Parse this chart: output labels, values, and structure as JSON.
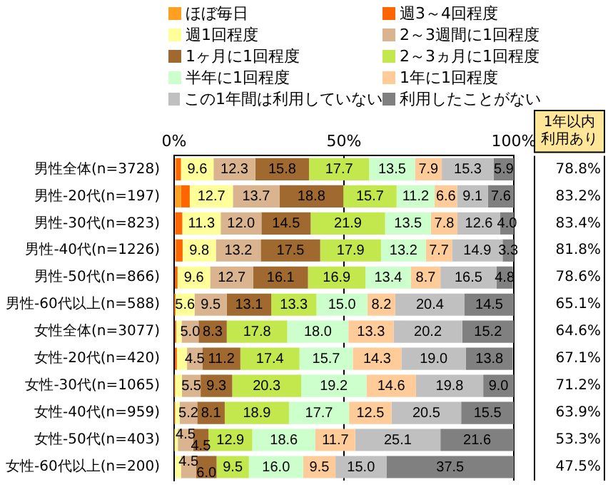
{
  "chart_data": {
    "type": "bar",
    "orientation": "horizontal",
    "stacked": true,
    "legend": "top",
    "grid": "x",
    "categories": [
      "男性全体(n=3728)",
      "男性-20代(n=197)",
      "男性-30代(n=823)",
      "男性-40代(n=1226)",
      "男性-50代(n=866)",
      "男性-60代以上(n=588)",
      "女性全体(n=3077)",
      "女性-20代(n=420)",
      "女性-30代(n=1065)",
      "女性-40代(n=959)",
      "女性-50代(n=403)",
      "女性-60代以上(n=200)"
    ],
    "xlim": [
      0,
      100
    ],
    "xticks": [
      {
        "value": 0,
        "label": "0%"
      },
      {
        "value": 50,
        "label": "50%"
      },
      {
        "value": 100,
        "label": "100%"
      }
    ],
    "series": [
      {
        "name": "ほぼ毎日",
        "color": "#ffa020",
        "values": [
          0.5,
          2.0,
          0.4,
          0.5,
          null,
          0.1,
          0.2,
          null,
          0.1,
          0.1,
          0,
          0
        ]
      },
      {
        "name": "週3～4回程度",
        "color": "#ff6600",
        "values": [
          1.5,
          2.6,
          2.0,
          2.0,
          1.0,
          0.3,
          0.4,
          0.8,
          0.2,
          0.2,
          0.1,
          0
        ]
      },
      {
        "name": "週1回程度",
        "color": "#ffff99",
        "values": [
          9.6,
          12.7,
          11.3,
          9.8,
          9.6,
          5.6,
          1.6,
          3.0,
          2.0,
          1.3,
          1.0,
          2.0
        ],
        "value_labels": [
          "9.6",
          "12.7",
          "11.3",
          "9.8",
          "9.6",
          "5.6",
          null,
          null,
          null,
          null,
          null,
          null
        ]
      },
      {
        "name": "2～3週間に1回程度",
        "color": "#dab48e",
        "values": [
          12.3,
          13.7,
          12.0,
          13.2,
          12.7,
          9.5,
          5.0,
          4.5,
          5.5,
          5.2,
          4.5,
          4.5
        ],
        "value_labels": [
          "12.3",
          "13.7",
          "12.0",
          "13.2",
          "12.7",
          "9.5",
          "5.0",
          "4.5",
          "5.5",
          "5.2",
          "4.5",
          "4.5"
        ]
      },
      {
        "name": "1ヶ月に1回程度",
        "color": "#a0692f",
        "values": [
          15.8,
          18.8,
          14.5,
          17.5,
          16.1,
          13.1,
          8.3,
          11.2,
          9.3,
          8.1,
          4.5,
          6.0
        ],
        "value_labels": [
          "15.8",
          "18.8",
          "14.5",
          "17.5",
          "16.1",
          "13.1",
          "8.3",
          "11.2",
          "9.3",
          "8.1",
          "4.5",
          "6.0"
        ]
      },
      {
        "name": "2～3ヵ月に1回程度",
        "color": "#c2e84e",
        "values": [
          17.7,
          15.7,
          21.9,
          17.9,
          16.9,
          13.3,
          17.8,
          17.4,
          20.3,
          18.9,
          12.9,
          9.5
        ],
        "value_labels": [
          "17.7",
          "15.7",
          "21.9",
          "17.9",
          "16.9",
          "13.3",
          "17.8",
          "17.4",
          "20.3",
          "18.9",
          "12.9",
          "9.5"
        ]
      },
      {
        "name": "半年に1回程度",
        "color": "#ccffcc",
        "values": [
          13.5,
          11.2,
          13.5,
          13.2,
          13.4,
          15.0,
          18.0,
          15.7,
          19.2,
          17.7,
          18.6,
          16.0
        ],
        "value_labels": [
          "13.5",
          "11.2",
          "13.5",
          "13.2",
          "13.4",
          "15.0",
          "18.0",
          "15.7",
          "19.2",
          "17.7",
          "18.6",
          "16.0"
        ]
      },
      {
        "name": "1年に1回程度",
        "color": "#ffcc99",
        "values": [
          7.9,
          6.6,
          7.8,
          7.7,
          8.7,
          8.2,
          13.3,
          14.3,
          14.6,
          12.5,
          11.7,
          9.5
        ],
        "value_labels": [
          "7.9",
          "6.6",
          "7.8",
          "7.7",
          "8.7",
          "8.2",
          "13.3",
          "14.3",
          "14.6",
          "12.5",
          "11.7",
          "9.5"
        ]
      },
      {
        "name": "この1年間は利用していない",
        "color": "#c0c0c0",
        "values": [
          15.3,
          9.1,
          12.6,
          14.9,
          16.5,
          20.4,
          20.2,
          19.0,
          19.8,
          20.5,
          25.1,
          15.0
        ],
        "value_labels": [
          "15.3",
          "9.1",
          "12.6",
          "14.9",
          "16.5",
          "20.4",
          "20.2",
          "19.0",
          "19.8",
          "20.5",
          "25.1",
          "15.0"
        ]
      },
      {
        "name": "利用したことがない",
        "color": "#808080",
        "values": [
          5.9,
          7.6,
          4.0,
          3.3,
          4.8,
          14.5,
          15.2,
          13.8,
          9.0,
          15.5,
          21.6,
          37.5
        ],
        "value_labels": [
          "5.9",
          "7.6",
          "4.0",
          "3.3",
          "4.8",
          "14.5",
          "15.2",
          "13.8",
          "9.0",
          "15.5",
          "21.6",
          "37.5"
        ]
      }
    ],
    "annotations": [
      "1年以内利用あり",
      "78.8%",
      "83.2%",
      "83.4%",
      "81.8%",
      "78.6%",
      "65.1%",
      "64.6%",
      "67.1%",
      "71.2%",
      "63.9%",
      "53.3%",
      "47.5%"
    ]
  }
}
